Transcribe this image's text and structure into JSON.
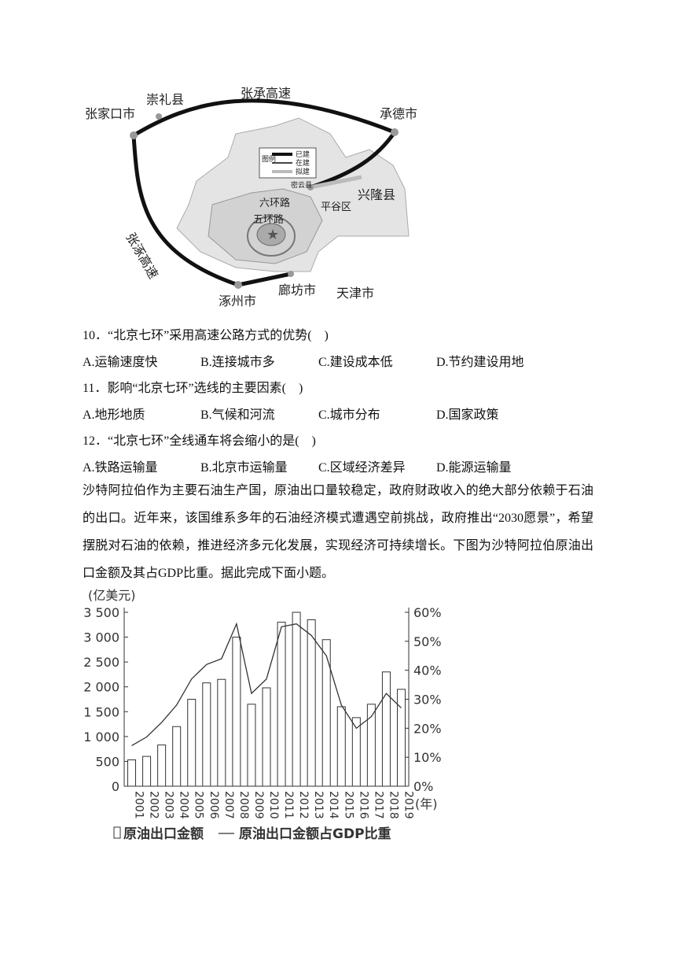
{
  "map": {
    "labels": [
      "张承高速",
      "崇礼县",
      "张家口市",
      "承德市",
      "图例",
      "已建",
      "在建",
      "拟建",
      "密云县",
      "兴隆县",
      "六环路",
      "平谷区",
      "五环路",
      "张涿高速",
      "涿州市",
      "廊坊市",
      "天津市"
    ]
  },
  "questions": [
    {
      "stem": "10．“北京七环”采用高速公路方式的优势(　)",
      "options": [
        "A.运输速度快",
        "B.连接城市多",
        "C.建设成本低",
        "D.节约建设用地"
      ]
    },
    {
      "stem": "11．影响“北京七环”选线的主要因素(　)",
      "options": [
        "A.地形地质",
        "B.气候和河流",
        "C.城市分布",
        "D.国家政策"
      ]
    },
    {
      "stem": "12．“北京七环”全线通车将会缩小的是(　)",
      "options": [
        "A.铁路运输量",
        "B.北京市运输量",
        "C.区域经济差异",
        "D.能源运输量"
      ]
    }
  ],
  "passage": "沙特阿拉伯作为主要石油生产国，原油出口量较稳定，政府财政收入的绝大部分依赖于石油的出口。近年来，该国维系多年的石油经济模式遭遇空前挑战，政府推出“2030愿景”，希望摆脱对石油的依赖，推进经济多元化发展，实现经济可持续增长。下图为沙特阿拉伯原油出口金额及其占GDP比重。据此完成下面小题。",
  "chart_data": {
    "type": "combo",
    "y_label": "(亿美元)",
    "x_label": "(年)",
    "categories": [
      "2001",
      "2002",
      "2003",
      "2004",
      "2005",
      "2006",
      "2007",
      "2008",
      "2009",
      "2010",
      "2011",
      "2012",
      "2013",
      "2014",
      "2015",
      "2016",
      "2017",
      "2018",
      "2019"
    ],
    "series": [
      {
        "name": "原油出口金额",
        "type": "bar",
        "color": "#333333",
        "values": [
          530,
          600,
          830,
          1200,
          1750,
          2080,
          2150,
          3000,
          1650,
          1980,
          3300,
          3500,
          3350,
          2950,
          1600,
          1380,
          1650,
          2300,
          1950
        ]
      },
      {
        "name": "原油出口金额占GDP比重",
        "type": "line",
        "axis": "y2",
        "color": "#333333",
        "values": [
          14,
          17,
          22,
          28,
          37,
          42,
          44,
          56,
          32,
          37,
          55,
          56,
          52,
          45,
          28,
          20,
          24,
          32,
          27
        ]
      }
    ],
    "ylim": [
      0,
      3500
    ],
    "yticks": [
      0,
      500,
      {
        "value": 1000,
        "label": "1 000"
      },
      {
        "value": 1500,
        "label": "1 500"
      },
      {
        "value": 2000,
        "label": "2 000"
      },
      {
        "value": 2500,
        "label": "2 500"
      },
      {
        "value": 3000,
        "label": "3 000"
      },
      {
        "value": 3500,
        "label": "3 500"
      }
    ],
    "y2lim": [
      0,
      60
    ],
    "y2ticks": [
      {
        "value": 0,
        "label": "0%"
      },
      {
        "value": 10,
        "label": "10%"
      },
      {
        "value": 20,
        "label": "20%"
      },
      {
        "value": 30,
        "label": "30%"
      },
      {
        "value": 40,
        "label": "40%"
      },
      {
        "value": 50,
        "label": "50%"
      },
      {
        "value": 60,
        "label": "60%"
      }
    ]
  }
}
